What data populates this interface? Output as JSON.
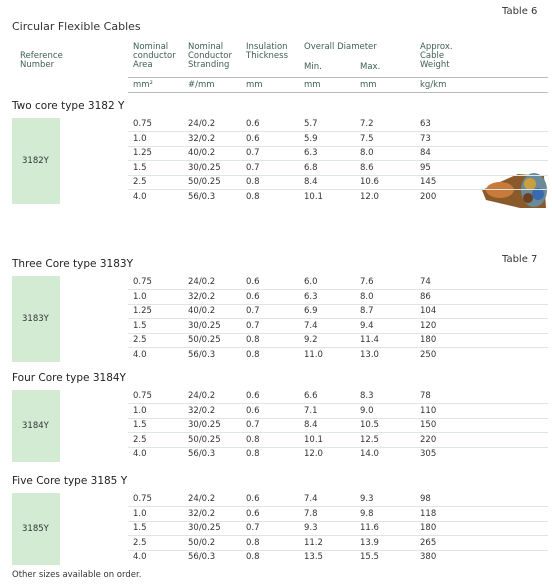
{
  "table_labels": [
    "Table 6",
    "Table 7"
  ],
  "title": "Circular Flexible Cables",
  "header": {
    "reference": "Reference\nNumber",
    "columns": [
      "Nominal\nconductor\nArea",
      "Nominal\nConductor\nStranding",
      "Insulation\nThickness",
      "Overall Diameter",
      "Approx.\nCable\nWeight"
    ],
    "sub_columns": [
      "Min.",
      "Max."
    ],
    "units": [
      "mm²",
      "#/mm",
      "mm",
      "mm",
      "mm",
      "kg/km"
    ]
  },
  "sections": [
    {
      "title": "Two core type 3182 Y",
      "code": "3182Y",
      "rows": [
        [
          "0.75",
          "24/0.2",
          "0.6",
          "5.7",
          "7.2",
          "63"
        ],
        [
          "1.0",
          "32/0.2",
          "0.6",
          "5.9",
          "7.5",
          "73"
        ],
        [
          "1.25",
          "40/0.2",
          "0.7",
          "6.3",
          "8.0",
          "84"
        ],
        [
          "1.5",
          "30/0.25",
          "0.7",
          "6.8",
          "8.6",
          "95"
        ],
        [
          "2.5",
          "50/0.25",
          "0.8",
          "8.4",
          "10.6",
          "145"
        ],
        [
          "4.0",
          "56/0.3",
          "0.8",
          "10.1",
          "12.0",
          "200"
        ]
      ]
    },
    {
      "title": "Three Core type 3183Y",
      "code": "3183Y",
      "rows": [
        [
          "0.75",
          "24/0.2",
          "0.6",
          "6.0",
          "7.6",
          "74"
        ],
        [
          "1.0",
          "32/0.2",
          "0.6",
          "6.3",
          "8.0",
          "86"
        ],
        [
          "1.25",
          "40/0.2",
          "0.7",
          "6.9",
          "8.7",
          "104"
        ],
        [
          "1.5",
          "30/0.25",
          "0.7",
          "7.4",
          "9.4",
          "120"
        ],
        [
          "2.5",
          "50/0.25",
          "0.8",
          "9.2",
          "11.4",
          "180"
        ],
        [
          "4.0",
          "56/0.3",
          "0.8",
          "11.0",
          "13.0",
          "250"
        ]
      ]
    },
    {
      "title": "Four Core type 3184Y",
      "code": "3184Y",
      "rows": [
        [
          "0.75",
          "24/0.2",
          "0.6",
          "6.6",
          "8.3",
          "78"
        ],
        [
          "1.0",
          "32/0.2",
          "0.6",
          "7.1",
          "9.0",
          "110"
        ],
        [
          "1.5",
          "30/0.25",
          "0.7",
          "8.4",
          "10.5",
          "150"
        ],
        [
          "2.5",
          "50/0.25",
          "0.8",
          "10.1",
          "12.5",
          "220"
        ],
        [
          "4.0",
          "56/0.3",
          "0.8",
          "12.0",
          "14.0",
          "305"
        ]
      ]
    },
    {
      "title": "Five Core type 3185 Y",
      "code": "3185Y",
      "rows": [
        [
          "0.75",
          "24/0.2",
          "0.6",
          "7.4",
          "9.3",
          "98"
        ],
        [
          "1.0",
          "32/0.2",
          "0.6",
          "7.8",
          "9.8",
          "118"
        ],
        [
          "1.5",
          "30/0.25",
          "0.7",
          "9.3",
          "11.6",
          "180"
        ],
        [
          "2.5",
          "50/0.2",
          "0.8",
          "11.2",
          "13.9",
          "265"
        ],
        [
          "4.0",
          "56/0.3",
          "0.8",
          "13.5",
          "15.5",
          "380"
        ]
      ]
    }
  ],
  "footnote": "Other sizes available on order."
}
